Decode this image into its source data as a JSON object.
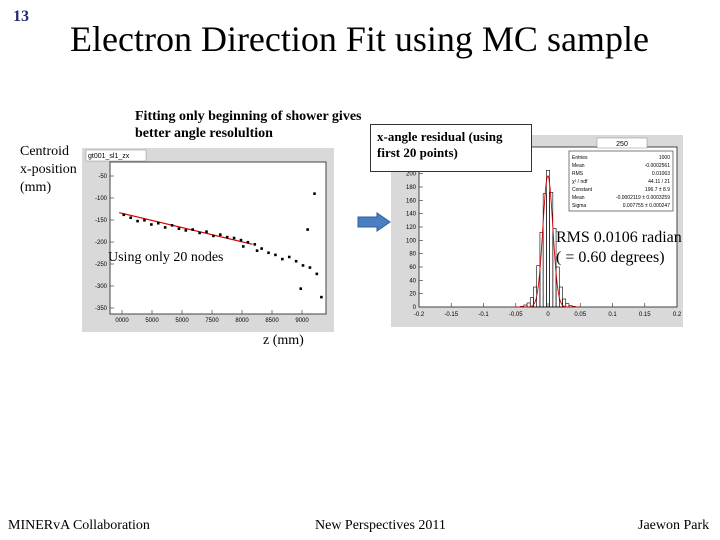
{
  "slide": {
    "number": "13",
    "title": "Electron Direction Fit using MC sample",
    "note": "Fitting only beginning of shower gives better angle resolultion",
    "ylabel_lines": [
      "Centroid",
      "x-position",
      "(mm)"
    ],
    "xlabel": "z (mm)",
    "overlay_label": "Using only 20 nodes",
    "callout": "x-angle residual (using first 20 points)",
    "rms_lines": [
      "RMS 0.0106 radian",
      "( = 0.60 degrees)"
    ]
  },
  "footer": {
    "left": "MINERvA Collaboration",
    "center": "New Perspectives 2011",
    "right": "Jaewon Park"
  },
  "colors": {
    "slide_number": "#1f2a6b",
    "fit_line": "#d40000",
    "histogram": "#000000",
    "arrow": "#4a7fc1"
  },
  "left_plot": {
    "frame_title": "gt001_sl1_zx",
    "yticks": [
      "-50",
      "-100",
      "-150",
      "-200",
      "-250",
      "-300",
      "-350"
    ],
    "xticks": [
      "0000",
      "5000",
      "5000",
      "7500",
      "8000",
      "8500",
      "9000"
    ]
  },
  "right_plot": {
    "title": "250",
    "stats": [
      [
        "Entries",
        "1000"
      ],
      [
        "Mean",
        "-0.0002561"
      ],
      [
        "RMS",
        "0.01063"
      ],
      [
        "χ² / ndf",
        "44.11 / 21"
      ],
      [
        "Constant",
        "196.7 ± 8.9"
      ],
      [
        "Mean",
        "-0.0002119 ± 0.0003259"
      ],
      [
        "Sigma",
        "0.007755 ± 0.000247"
      ]
    ],
    "yticks": [
      "220",
      "200",
      "180",
      "160",
      "140",
      "120",
      "100",
      "80",
      "60",
      "40",
      "20",
      "0"
    ],
    "xticks": [
      "-0.2",
      "-0.15",
      "-0.1",
      "-0.05",
      "0",
      "0.05",
      "0.1",
      "0.15",
      "0.2"
    ]
  },
  "chart_data": [
    {
      "type": "scatter",
      "title": "gt001_sl1_zx",
      "xlabel": "z (mm)",
      "ylabel": "Centroid x-position (mm)",
      "xlim": [
        4500,
        9200
      ],
      "ylim": [
        -380,
        -20
      ],
      "points": [
        [
          4800,
          -145
        ],
        [
          4950,
          -152
        ],
        [
          5100,
          -160
        ],
        [
          5250,
          -158
        ],
        [
          5400,
          -168
        ],
        [
          5550,
          -165
        ],
        [
          5700,
          -175
        ],
        [
          5850,
          -170
        ],
        [
          6000,
          -178
        ],
        [
          6150,
          -182
        ],
        [
          6300,
          -180
        ],
        [
          6450,
          -188
        ],
        [
          6600,
          -185
        ],
        [
          6750,
          -195
        ],
        [
          6900,
          -192
        ],
        [
          7050,
          -198
        ],
        [
          7200,
          -200
        ],
        [
          7350,
          -205
        ],
        [
          7500,
          -210
        ],
        [
          7650,
          -215
        ],
        [
          7800,
          -225
        ],
        [
          7950,
          -235
        ],
        [
          8100,
          -240
        ],
        [
          8250,
          -250
        ],
        [
          8400,
          -245
        ],
        [
          8550,
          -255
        ],
        [
          8700,
          -265
        ],
        [
          8850,
          -270
        ],
        [
          9000,
          -285
        ],
        [
          8800,
          -180
        ],
        [
          8950,
          -95
        ],
        [
          8650,
          -320
        ],
        [
          9100,
          -340
        ],
        [
          7700,
          -230
        ],
        [
          7400,
          -220
        ]
      ],
      "fit_line": {
        "x": [
          4700,
          7600
        ],
        "y": [
          -140,
          -215
        ]
      }
    },
    {
      "type": "bar",
      "title": "250",
      "xlabel": "",
      "ylabel": "",
      "xlim": [
        -0.2,
        0.2
      ],
      "ylim": [
        0,
        240
      ],
      "bin_centers": [
        -0.04,
        -0.035,
        -0.03,
        -0.025,
        -0.02,
        -0.015,
        -0.01,
        -0.005,
        0,
        0.005,
        0.01,
        0.015,
        0.02,
        0.025,
        0.03,
        0.035,
        0.04
      ],
      "values": [
        1,
        3,
        6,
        14,
        30,
        62,
        112,
        170,
        205,
        172,
        118,
        60,
        30,
        12,
        5,
        2,
        1
      ],
      "fit": {
        "type": "gaussian",
        "constant": 196.7,
        "mean": -0.0002119,
        "sigma": 0.007755
      }
    }
  ]
}
